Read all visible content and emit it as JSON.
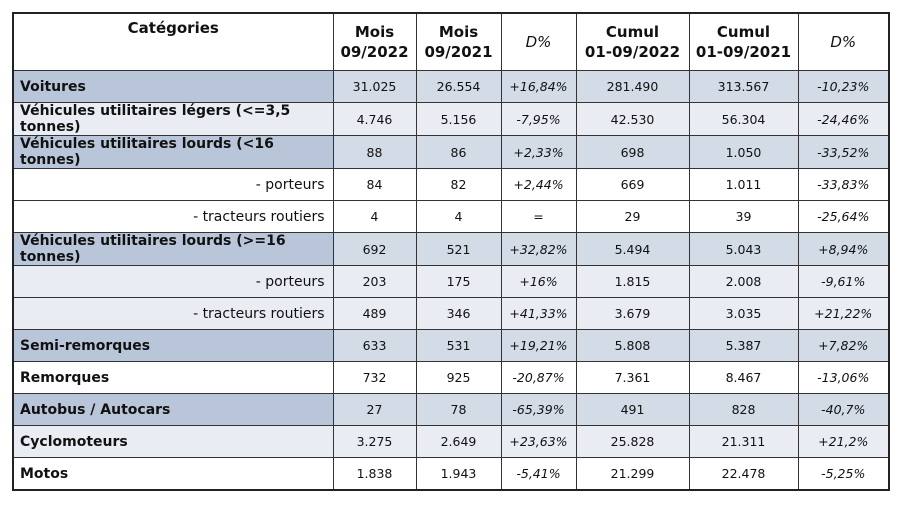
{
  "table": {
    "header": [
      "Catégories",
      "Mois\n09/2022",
      "Mois\n09/2021",
      "D%",
      "Cumul\n01-09/2022",
      "Cumul\n01-09/2021",
      "D%"
    ],
    "rows": [
      [
        "Voitures",
        "31.025",
        "26.554",
        "+16,84%",
        "281.490",
        "313.567",
        "-10,23%"
      ],
      [
        "Véhicules utilitaires légers (<=3,5 tonnes)",
        "4.746",
        "5.156",
        "-7,95%",
        "42.530",
        "56.304",
        "-24,46%"
      ],
      [
        "Véhicules utilitaires lourds (<16 tonnes)",
        "88",
        "86",
        "+2,33%",
        "698",
        "1.050",
        "-33,52%"
      ],
      [
        "- porteurs",
        "84",
        "82",
        "+2,44%",
        "669",
        "1.011",
        "-33,83%"
      ],
      [
        "- tracteurs routiers",
        "4",
        "4",
        "=",
        "29",
        "39",
        "-25,64%"
      ],
      [
        "Véhicules utilitaires lourds (>=16 tonnes)",
        "692",
        "521",
        "+32,82%",
        "5.494",
        "5.043",
        "+8,94%"
      ],
      [
        "- porteurs",
        "203",
        "175",
        "+16%",
        "1.815",
        "2.008",
        "-9,61%"
      ],
      [
        "- tracteurs routiers",
        "489",
        "346",
        "+41,33%",
        "3.679",
        "3.035",
        "+21,22%"
      ],
      [
        "Semi-remorques",
        "633",
        "531",
        "+19,21%",
        "5.808",
        "5.387",
        "+7,82%"
      ],
      [
        "Remorques",
        "732",
        "925",
        "-20,87%",
        "7.361",
        "8.467",
        "-13,06%"
      ],
      [
        "Autobus / Autocars",
        "27",
        "78",
        "-65,39%",
        "491",
        "828",
        "-40,7%"
      ],
      [
        "Cyclomoteurs",
        "3.275",
        "2.649",
        "+23,63%",
        "25.828",
        "21.311",
        "+21,2%"
      ],
      [
        "Motos",
        "1.838",
        "1.943",
        "-5,41%",
        "21.299",
        "22.478",
        "-5,25%"
      ]
    ]
  }
}
